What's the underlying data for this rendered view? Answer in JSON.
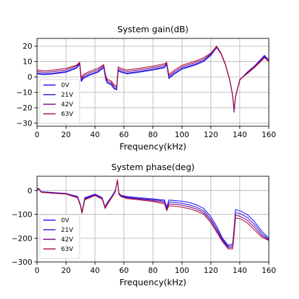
{
  "chart_data": [
    {
      "type": "line",
      "title": "System gain(dB)",
      "xlabel": "Frequency(kHz)",
      "ylabel": "",
      "xlim": [
        0,
        160
      ],
      "ylim": [
        -32,
        25
      ],
      "xticks": [
        0,
        20,
        40,
        60,
        80,
        100,
        120,
        140,
        160
      ],
      "yticks": [
        -30,
        -20,
        -10,
        0,
        10,
        20
      ],
      "grid": true,
      "legend": "lower-left",
      "series": [
        {
          "name": "0V",
          "color": "#1a1aff",
          "x": [
            0,
            5,
            10,
            20,
            27,
            29.5,
            30.5,
            32,
            36,
            42,
            46,
            47.5,
            48.5,
            51,
            53,
            55,
            56,
            58,
            62,
            70,
            80,
            88,
            89.5,
            91,
            95,
            100,
            105,
            110,
            115,
            120,
            124,
            127,
            130,
            133,
            135,
            136,
            137,
            140,
            145,
            150,
            155,
            157,
            160
          ],
          "y": [
            2,
            1.5,
            1.8,
            3,
            5.5,
            8,
            -3,
            -1,
            1,
            3,
            6,
            -2,
            -4,
            -5,
            -7.5,
            -8.5,
            4,
            3,
            2,
            3,
            4.5,
            6,
            8,
            -1,
            2,
            5,
            6.5,
            8,
            10,
            14,
            19,
            15,
            8,
            -2,
            -12,
            -23,
            -13,
            -2,
            3,
            7,
            12,
            14,
            11
          ]
        },
        {
          "name": "21V",
          "color": "#3a1acc",
          "x": [
            0,
            5,
            10,
            20,
            27,
            29.5,
            30.5,
            32,
            36,
            42,
            46,
            47.5,
            48.5,
            51,
            53,
            55,
            56,
            58,
            62,
            70,
            80,
            88,
            89.5,
            91,
            95,
            100,
            105,
            110,
            115,
            120,
            124,
            127,
            130,
            133,
            135,
            136,
            137,
            140,
            145,
            150,
            155,
            157,
            160
          ],
          "y": [
            2.5,
            2,
            2.3,
            3.5,
            6,
            8.5,
            -2.5,
            -0.5,
            1.5,
            3.5,
            6.5,
            -1.5,
            -3.5,
            -4.5,
            -7,
            -8,
            4.5,
            3.5,
            2.5,
            3.5,
            5,
            6.5,
            8.5,
            -0.5,
            2.5,
            5.5,
            7,
            8.5,
            10.5,
            14.5,
            19.5,
            15,
            8,
            -2,
            -12,
            -22.5,
            -13,
            -2,
            3,
            7,
            11.5,
            13.5,
            11
          ]
        },
        {
          "name": "42V",
          "color": "#7a0a88",
          "x": [
            0,
            5,
            10,
            20,
            27,
            29.5,
            30.5,
            32,
            36,
            42,
            46,
            47.5,
            48.5,
            51,
            53,
            55,
            56,
            58,
            62,
            70,
            80,
            88,
            89.5,
            91,
            95,
            100,
            105,
            110,
            115,
            120,
            124,
            127,
            130,
            133,
            135,
            136,
            137,
            140,
            145,
            150,
            155,
            157,
            160
          ],
          "y": [
            3.5,
            3,
            3.3,
            4.5,
            7,
            9,
            -1.5,
            0.5,
            2.5,
            4.5,
            7.5,
            -0.5,
            -2.5,
            -3.5,
            -6,
            -7,
            5.5,
            4.5,
            3.5,
            4.5,
            6,
            7.5,
            9,
            0.5,
            3.5,
            6.5,
            8,
            9.5,
            11.5,
            15,
            19.5,
            15,
            8,
            -2,
            -12,
            -22,
            -13,
            -2,
            2.5,
            6.5,
            11,
            13,
            10.5
          ]
        },
        {
          "name": "63V",
          "color": "#b0103c",
          "x": [
            0,
            5,
            10,
            20,
            27,
            29.5,
            30.5,
            32,
            36,
            42,
            46,
            47.5,
            48.5,
            51,
            53,
            55,
            56,
            58,
            62,
            70,
            80,
            88,
            89.5,
            91,
            95,
            100,
            105,
            110,
            115,
            120,
            124,
            127,
            130,
            133,
            135,
            136,
            137,
            140,
            145,
            150,
            155,
            157,
            160
          ],
          "y": [
            4.5,
            4,
            4.3,
            5.5,
            7.5,
            9.5,
            -0.5,
            1.5,
            3.5,
            5.5,
            8,
            0.5,
            -1.5,
            -2.5,
            -5,
            -6,
            6.5,
            5.5,
            4.5,
            5.5,
            7,
            8.5,
            9.5,
            1.5,
            4.5,
            7.5,
            9,
            10.5,
            12.5,
            15.5,
            20,
            15.5,
            8.5,
            -1.5,
            -11.5,
            -21.5,
            -12.5,
            -1.5,
            2,
            6,
            10.5,
            12.5,
            10
          ]
        }
      ]
    },
    {
      "type": "line",
      "title": "System phase(deg)",
      "xlabel": "Frequency(kHz)",
      "ylabel": "",
      "xlim": [
        0,
        160
      ],
      "ylim": [
        -300,
        60
      ],
      "xticks": [
        0,
        20,
        40,
        60,
        80,
        100,
        120,
        140,
        160
      ],
      "yticks": [
        -300,
        -200,
        -100,
        0
      ],
      "grid": true,
      "legend": "lower-left",
      "series": [
        {
          "name": "0V",
          "color": "#1a1aff",
          "x": [
            0,
            1,
            3,
            10,
            20,
            28,
            30,
            31,
            33,
            40,
            45,
            47,
            48,
            52,
            54,
            55.5,
            56.5,
            58,
            62,
            70,
            80,
            88,
            89.5,
            91,
            95,
            100,
            105,
            110,
            115,
            120,
            124,
            128,
            132,
            135,
            136,
            137,
            140,
            145,
            150,
            155,
            160
          ],
          "y": [
            0,
            10,
            -5,
            -8,
            -12,
            -25,
            -60,
            -90,
            -30,
            -15,
            -30,
            -70,
            -55,
            -20,
            0,
            40,
            -10,
            -20,
            -25,
            -30,
            -35,
            -40,
            -70,
            -40,
            -42,
            -45,
            -50,
            -60,
            -75,
            -110,
            -150,
            -200,
            -230,
            -225,
            -160,
            -80,
            -85,
            -100,
            -130,
            -170,
            -200
          ]
        },
        {
          "name": "21V",
          "color": "#3a1acc",
          "x": [
            0,
            1,
            3,
            10,
            20,
            28,
            30,
            31,
            33,
            40,
            45,
            47,
            48,
            52,
            54,
            55.5,
            56.5,
            58,
            62,
            70,
            80,
            88,
            89.5,
            91,
            95,
            100,
            105,
            110,
            115,
            120,
            124,
            128,
            132,
            135,
            136,
            137,
            140,
            145,
            150,
            155,
            160
          ],
          "y": [
            0,
            9,
            -6,
            -9,
            -13,
            -27,
            -62,
            -92,
            -33,
            -17,
            -32,
            -72,
            -58,
            -22,
            -2,
            42,
            -12,
            -22,
            -28,
            -33,
            -38,
            -45,
            -75,
            -48,
            -50,
            -54,
            -60,
            -70,
            -85,
            -120,
            -160,
            -205,
            -235,
            -232,
            -170,
            -92,
            -97,
            -112,
            -142,
            -180,
            -205
          ]
        },
        {
          "name": "42V",
          "color": "#7a0a88",
          "x": [
            0,
            1,
            3,
            10,
            20,
            28,
            30,
            31,
            33,
            40,
            45,
            47,
            48,
            52,
            54,
            55.5,
            56.5,
            58,
            62,
            70,
            80,
            88,
            89.5,
            91,
            95,
            100,
            105,
            110,
            115,
            120,
            124,
            128,
            132,
            135,
            136,
            137,
            140,
            145,
            150,
            155,
            160
          ],
          "y": [
            0,
            8,
            -7,
            -10,
            -14,
            -29,
            -64,
            -94,
            -36,
            -19,
            -34,
            -74,
            -61,
            -24,
            -4,
            44,
            -14,
            -24,
            -31,
            -36,
            -42,
            -50,
            -80,
            -56,
            -58,
            -62,
            -68,
            -78,
            -93,
            -128,
            -168,
            -210,
            -240,
            -238,
            -180,
            -104,
            -108,
            -124,
            -154,
            -188,
            -208
          ]
        },
        {
          "name": "63V",
          "color": "#b0103c",
          "x": [
            0,
            1,
            3,
            10,
            20,
            28,
            30,
            31,
            33,
            40,
            45,
            47,
            48,
            52,
            54,
            55.5,
            56.5,
            58,
            62,
            70,
            80,
            88,
            89.5,
            91,
            95,
            100,
            105,
            110,
            115,
            120,
            124,
            128,
            132,
            135,
            136,
            137,
            140,
            145,
            150,
            155,
            160
          ],
          "y": [
            0,
            7,
            -8,
            -11,
            -15,
            -31,
            -66,
            -96,
            -39,
            -21,
            -36,
            -76,
            -64,
            -26,
            -6,
            46,
            -16,
            -26,
            -34,
            -39,
            -46,
            -56,
            -85,
            -64,
            -66,
            -70,
            -76,
            -86,
            -100,
            -135,
            -175,
            -215,
            -245,
            -245,
            -190,
            -115,
            -118,
            -135,
            -165,
            -195,
            -210
          ]
        }
      ]
    }
  ]
}
